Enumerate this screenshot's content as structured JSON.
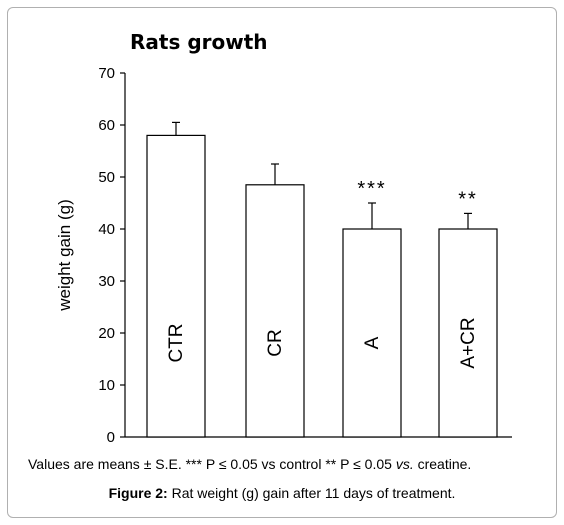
{
  "chart_data": {
    "type": "bar",
    "title": "Rats growth",
    "ylabel": "weight gain (g)",
    "xlabel": "",
    "ylim": [
      0,
      70
    ],
    "yticks": [
      0,
      10,
      20,
      30,
      40,
      50,
      60,
      70
    ],
    "categories": [
      "CTR",
      "CR",
      "A",
      "A+CR"
    ],
    "values": [
      58,
      48.5,
      40,
      40
    ],
    "errors": [
      2.5,
      4,
      5,
      3
    ],
    "significance": [
      "",
      "",
      "***",
      "**"
    ],
    "bar_color": "#ffffff",
    "grid": false
  },
  "note": {
    "part1": "Values are means ± S.E. *** P ≤ 0.05 vs control ** P ≤ 0.05 ",
    "part2": "vs.",
    "part3": " creatine."
  },
  "caption": {
    "label": "Figure 2:",
    "text": " Rat weight (g) gain after 11 days of treatment."
  }
}
